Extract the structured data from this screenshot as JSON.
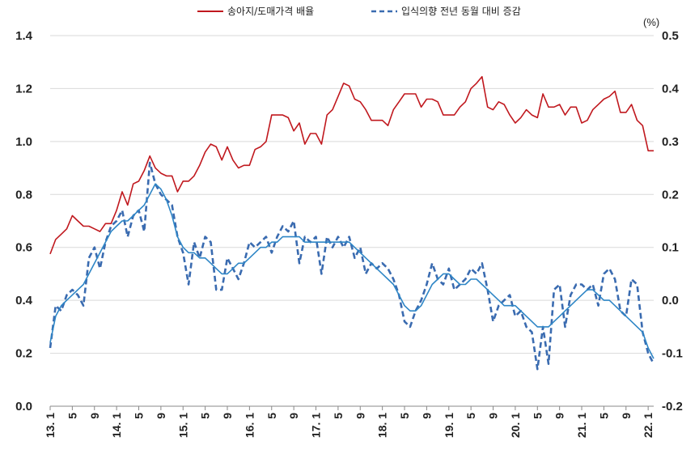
{
  "chart_data": {
    "type": "line",
    "legend": {
      "placement": "top",
      "entries": [
        {
          "name": "송아지/도매가격 배율",
          "color": "#c0181e",
          "dash": "solid"
        },
        {
          "name": "입식의향 전년 동월 대비 증감",
          "color": "#3a6bb0",
          "dash": "dashed"
        }
      ]
    },
    "right_axis_unit": "(%)",
    "left_axis": {
      "ylim": [
        0.0,
        1.4
      ],
      "ticks": [
        "0.0",
        "0.2",
        "0.4",
        "0.6",
        "0.8",
        "1.0",
        "1.2",
        "1.4"
      ]
    },
    "right_axis": {
      "ylim": [
        -0.2,
        0.5
      ],
      "ticks": [
        "-0.2",
        "-0.1",
        "0.0",
        "0.1",
        "0.2",
        "0.3",
        "0.4",
        "0.5"
      ]
    },
    "x_tick_labels": [
      "13. 1",
      "5",
      "9",
      "14. 1",
      "5",
      "9",
      "15. 1",
      "5",
      "9",
      "16. 1",
      "5",
      "9",
      "17. 1",
      "5",
      "9",
      "18. 1",
      "5",
      "9",
      "19. 1",
      "5",
      "9",
      "20. 1",
      "5",
      "9",
      "21. 1",
      "5",
      "9",
      "22. 1"
    ],
    "grid": "horizontal",
    "series": [
      {
        "name": "송아지/도매가격 배율",
        "axis": "left",
        "color": "#c0181e",
        "style": "solid",
        "values": [
          0.575,
          0.63,
          0.65,
          0.67,
          0.72,
          0.7,
          0.68,
          0.68,
          0.67,
          0.66,
          0.69,
          0.69,
          0.74,
          0.81,
          0.76,
          0.84,
          0.85,
          0.89,
          0.945,
          0.9,
          0.88,
          0.87,
          0.87,
          0.81,
          0.85,
          0.85,
          0.87,
          0.91,
          0.96,
          0.99,
          0.98,
          0.93,
          0.98,
          0.93,
          0.9,
          0.91,
          0.91,
          0.97,
          0.98,
          1.0,
          1.1,
          1.1,
          1.1,
          1.09,
          1.04,
          1.07,
          0.99,
          1.03,
          1.03,
          0.99,
          1.1,
          1.12,
          1.17,
          1.22,
          1.21,
          1.16,
          1.15,
          1.12,
          1.08,
          1.08,
          1.08,
          1.06,
          1.12,
          1.15,
          1.18,
          1.18,
          1.18,
          1.13,
          1.16,
          1.16,
          1.15,
          1.1,
          1.1,
          1.1,
          1.13,
          1.15,
          1.2,
          1.22,
          1.245,
          1.13,
          1.12,
          1.15,
          1.14,
          1.1,
          1.07,
          1.09,
          1.12,
          1.1,
          1.09,
          1.18,
          1.13,
          1.13,
          1.14,
          1.1,
          1.13,
          1.13,
          1.07,
          1.08,
          1.12,
          1.14,
          1.16,
          1.17,
          1.19,
          1.11,
          1.11,
          1.14,
          1.08,
          1.06,
          0.965,
          0.965
        ]
      },
      {
        "name": "입식의향 전년 동월 대비 증감",
        "axis": "right",
        "color": "#3a6bb0",
        "style": "dashed",
        "values": [
          -0.09,
          -0.01,
          -0.02,
          0.01,
          0.02,
          0.01,
          -0.01,
          0.08,
          0.1,
          0.06,
          0.11,
          0.14,
          0.15,
          0.17,
          0.12,
          0.16,
          0.17,
          0.13,
          0.26,
          0.22,
          0.2,
          0.19,
          0.18,
          0.12,
          0.09,
          0.03,
          0.11,
          0.08,
          0.12,
          0.11,
          0.02,
          0.02,
          0.08,
          0.06,
          0.04,
          0.07,
          0.11,
          0.1,
          0.11,
          0.12,
          0.09,
          0.12,
          0.14,
          0.13,
          0.15,
          0.07,
          0.12,
          0.11,
          0.12,
          0.05,
          0.12,
          0.1,
          0.12,
          0.1,
          0.12,
          0.08,
          0.1,
          0.05,
          0.07,
          0.06,
          0.07,
          0.06,
          0.04,
          0.01,
          -0.04,
          -0.05,
          -0.02,
          0.0,
          0.03,
          0.07,
          0.04,
          0.03,
          0.06,
          0.02,
          0.03,
          0.04,
          0.06,
          0.05,
          0.07,
          0.02,
          -0.04,
          -0.01,
          0.0,
          0.01,
          -0.03,
          -0.02,
          -0.05,
          -0.06,
          -0.13,
          -0.05,
          -0.12,
          0.02,
          0.03,
          -0.05,
          0.01,
          0.03,
          0.03,
          0.02,
          0.03,
          -0.01,
          0.05,
          0.06,
          0.04,
          -0.02,
          -0.03,
          0.04,
          0.03,
          -0.06,
          -0.1,
          -0.12
        ]
      },
      {
        "name": "",
        "axis": "right",
        "color": "#2e86c6",
        "style": "solid",
        "values": [
          -0.08,
          -0.03,
          -0.01,
          0.0,
          0.01,
          0.02,
          0.03,
          0.05,
          0.07,
          0.09,
          0.11,
          0.13,
          0.14,
          0.15,
          0.15,
          0.16,
          0.17,
          0.18,
          0.2,
          0.22,
          0.21,
          0.19,
          0.16,
          0.12,
          0.1,
          0.09,
          0.09,
          0.08,
          0.08,
          0.07,
          0.06,
          0.05,
          0.05,
          0.06,
          0.07,
          0.07,
          0.08,
          0.09,
          0.1,
          0.1,
          0.11,
          0.11,
          0.12,
          0.12,
          0.12,
          0.12,
          0.11,
          0.11,
          0.11,
          0.11,
          0.11,
          0.11,
          0.11,
          0.11,
          0.11,
          0.1,
          0.09,
          0.08,
          0.07,
          0.06,
          0.05,
          0.04,
          0.03,
          0.01,
          -0.01,
          -0.02,
          -0.02,
          -0.01,
          0.01,
          0.03,
          0.04,
          0.05,
          0.05,
          0.04,
          0.03,
          0.03,
          0.04,
          0.04,
          0.03,
          0.02,
          0.01,
          0.0,
          -0.01,
          -0.01,
          -0.01,
          -0.02,
          -0.03,
          -0.04,
          -0.05,
          -0.05,
          -0.05,
          -0.04,
          -0.03,
          -0.02,
          -0.01,
          0.0,
          0.01,
          0.02,
          0.02,
          0.01,
          0.0,
          0.0,
          -0.01,
          -0.02,
          -0.03,
          -0.04,
          -0.05,
          -0.06,
          -0.09,
          -0.11
        ]
      }
    ]
  }
}
